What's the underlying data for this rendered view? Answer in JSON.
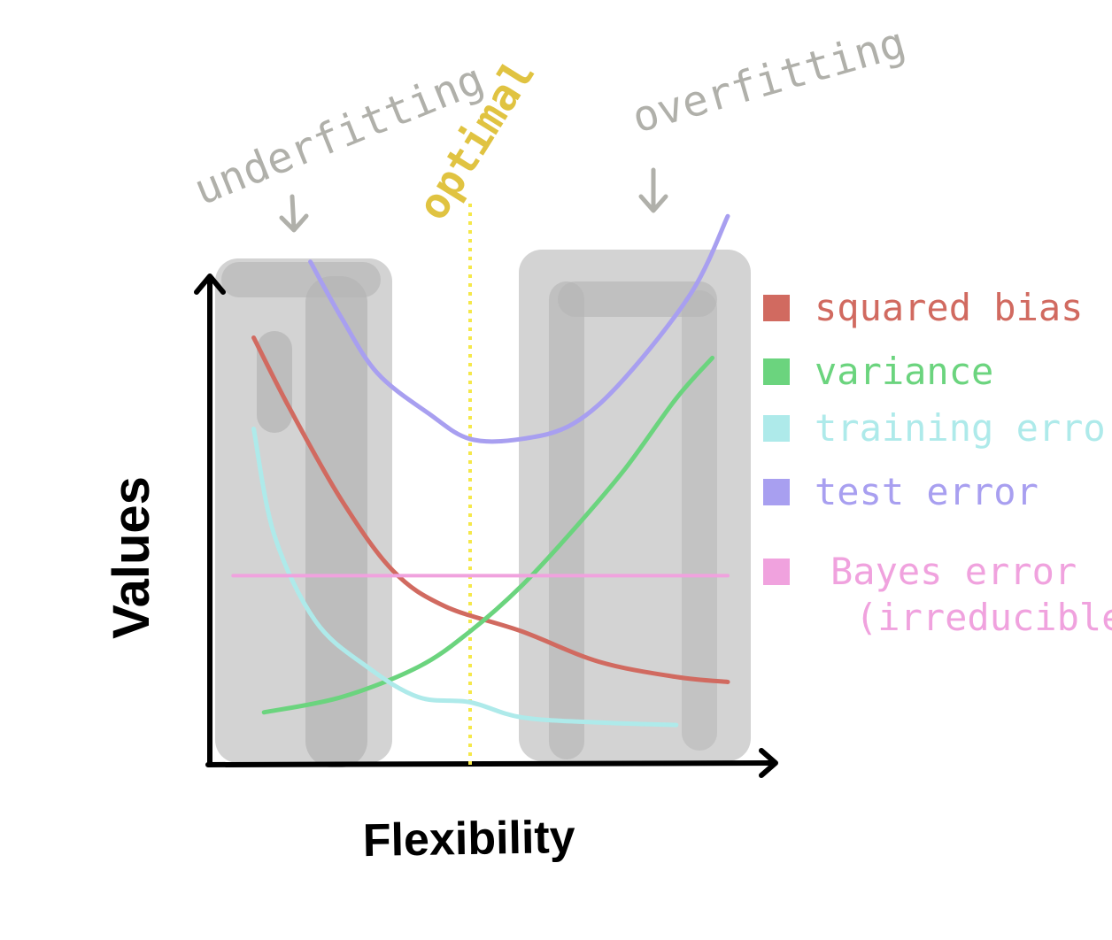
{
  "chart_data": {
    "type": "line",
    "xlabel": "Flexibility",
    "ylabel": "Values",
    "annotations": {
      "underfitting": "underfitting",
      "optimal": "optimal",
      "overfitting": "overfitting"
    },
    "legend_position": "right",
    "series": [
      {
        "name": "squared bias",
        "color": "#d16a60",
        "x": [
          0.08,
          0.15,
          0.25,
          0.35,
          0.45,
          0.6,
          0.75,
          0.9,
          1.0
        ],
        "y": [
          0.84,
          0.7,
          0.52,
          0.38,
          0.31,
          0.26,
          0.2,
          0.17,
          0.16
        ]
      },
      {
        "name": "variance",
        "color": "#6bd47e",
        "x": [
          0.1,
          0.25,
          0.4,
          0.5,
          0.6,
          0.7,
          0.8,
          0.9,
          0.97
        ],
        "y": [
          0.1,
          0.13,
          0.19,
          0.26,
          0.35,
          0.46,
          0.58,
          0.72,
          0.8
        ]
      },
      {
        "name": "training error",
        "color": "#aeeaea",
        "x": [
          0.08,
          0.12,
          0.2,
          0.3,
          0.4,
          0.5,
          0.6,
          0.75,
          0.9
        ],
        "y": [
          0.66,
          0.45,
          0.28,
          0.19,
          0.13,
          0.12,
          0.09,
          0.08,
          0.075
        ]
      },
      {
        "name": "test error",
        "color": "#a89ff0",
        "x": [
          0.19,
          0.25,
          0.32,
          0.42,
          0.5,
          0.6,
          0.7,
          0.8,
          0.93,
          1.0
        ],
        "y": [
          0.99,
          0.88,
          0.77,
          0.69,
          0.64,
          0.64,
          0.67,
          0.76,
          0.93,
          1.08
        ]
      },
      {
        "name": "Bayes error (irreducible)",
        "color": "#f0a2de",
        "x": [
          0.04,
          1.0
        ],
        "y": [
          0.37,
          0.37
        ]
      }
    ],
    "optimal_x": 0.5,
    "xlim": [
      0,
      1
    ],
    "ylim": [
      0,
      1
    ]
  }
}
